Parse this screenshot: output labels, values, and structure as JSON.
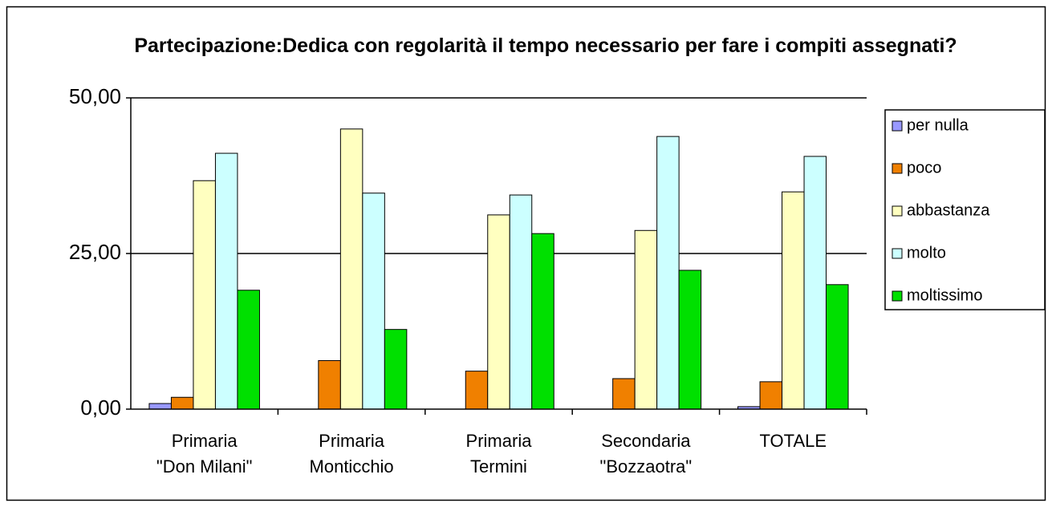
{
  "chart_data": {
    "type": "bar",
    "title": "Partecipazione:Dedica con regolarità il tempo necessario per fare i compiti assegnati?",
    "categories": [
      [
        "Primaria",
        "\"Don Milani\""
      ],
      [
        "Primaria",
        "Monticchio"
      ],
      [
        "Primaria",
        "Termini"
      ],
      [
        "Secondaria",
        "\"Bozzaotra\""
      ],
      [
        "TOTALE"
      ]
    ],
    "series": [
      {
        "name": "per nulla",
        "color": "#9999ff",
        "values": [
          0.9,
          0,
          0,
          0,
          0.4
        ]
      },
      {
        "name": "poco",
        "color": "#f08000",
        "values": [
          1.9,
          7.8,
          6.1,
          4.9,
          4.4
        ]
      },
      {
        "name": "abbastanza",
        "color": "#ffffc0",
        "values": [
          36.7,
          45.0,
          31.2,
          28.7,
          34.9
        ]
      },
      {
        "name": "molto",
        "color": "#ccffff",
        "values": [
          41.1,
          34.7,
          34.4,
          43.8,
          40.6
        ]
      },
      {
        "name": "moltissimo",
        "color": "#00e000",
        "values": [
          19.1,
          12.8,
          28.2,
          22.3,
          20.0
        ]
      }
    ],
    "ylim": [
      0,
      50
    ],
    "yticks": [
      {
        "value": 0,
        "label": "0,00"
      },
      {
        "value": 25,
        "label": "25,00"
      },
      {
        "value": 50,
        "label": "50,00"
      }
    ],
    "grid": true,
    "legend": "right"
  }
}
